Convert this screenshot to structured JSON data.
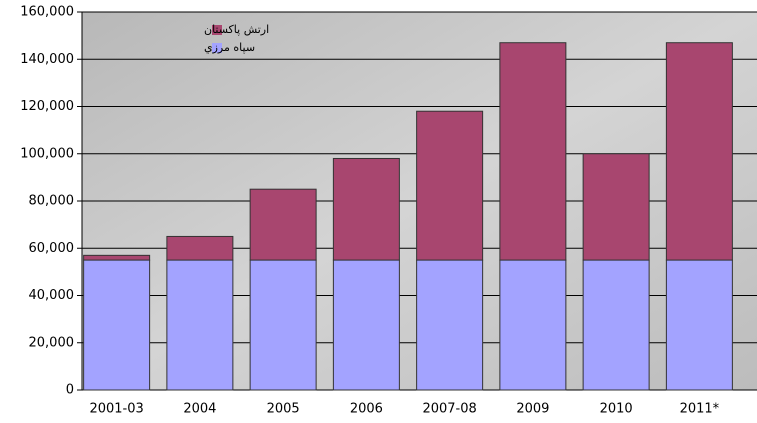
{
  "chart_data": {
    "type": "stacked_bar",
    "categories": [
      "2001-03",
      "2004",
      "2005",
      "2006",
      "2007-08",
      "2009",
      "2010",
      "2011*"
    ],
    "series": [
      {
        "name": "سپاه مرزي",
        "color": "#a3a3ff",
        "values": [
          55000,
          55000,
          55000,
          55000,
          55000,
          55000,
          55000,
          55000
        ]
      },
      {
        "name": "ارتش پاکستان",
        "color": "#a8466f",
        "values": [
          2000,
          10000,
          30000,
          43000,
          63000,
          92000,
          45000,
          92000
        ]
      }
    ],
    "ylim": [
      0,
      160000
    ],
    "yticks": [
      0,
      {
        "value": 20000,
        "label": "20,000"
      },
      {
        "value": 40000,
        "label": "40,000"
      },
      {
        "value": 60000,
        "label": "60,000"
      },
      {
        "value": 80000,
        "label": "80,000"
      },
      {
        "value": 100000,
        "label": "100,000"
      },
      {
        "value": 120000,
        "label": "120,000"
      },
      {
        "value": 140000,
        "label": "140,000"
      },
      {
        "value": 160000,
        "label": "160,000"
      }
    ],
    "grid": true,
    "legend": "top-left"
  }
}
